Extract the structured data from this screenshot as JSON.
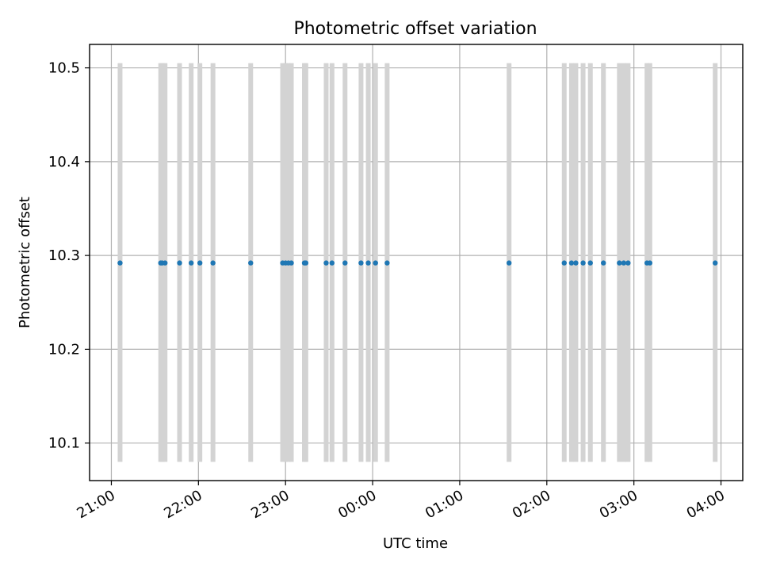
{
  "chart_data": {
    "type": "scatter",
    "title": "Photometric offset variation",
    "xlabel": "UTC time",
    "ylabel": "Photometric offset",
    "x_unit": "hours (UTC clock time, wrapping past midnight)",
    "xlim": [
      "20:45",
      "04:15"
    ],
    "ylim": [
      10.06,
      10.525
    ],
    "x_ticks": [
      "21:00",
      "22:00",
      "23:00",
      "00:00",
      "01:00",
      "02:00",
      "03:00",
      "04:00"
    ],
    "y_ticks": [
      10.1,
      10.2,
      10.3,
      10.4,
      10.5
    ],
    "y_tick_labels": [
      "10.1",
      "10.2",
      "10.3",
      "10.4",
      "10.5"
    ],
    "grid": true,
    "point_color": "#1f77b4",
    "band_color": "#d3d3d3",
    "band_range": [
      10.08,
      10.505
    ],
    "points_x": [
      "21:06",
      "21:34",
      "21:35",
      "21:37",
      "21:47",
      "21:55",
      "22:01",
      "22:10",
      "22:36",
      "22:58",
      "23:00",
      "23:02",
      "23:04",
      "23:13",
      "23:14",
      "23:28",
      "23:32",
      "23:41",
      "23:52",
      "23:57",
      "00:02",
      "00:10",
      "01:34",
      "02:12",
      "02:17",
      "02:20",
      "02:25",
      "02:30",
      "02:39",
      "02:50",
      "02:53",
      "02:56",
      "03:09",
      "03:11",
      "03:56"
    ],
    "points_y": [
      10.292,
      10.292,
      10.292,
      10.292,
      10.292,
      10.292,
      10.292,
      10.292,
      10.292,
      10.292,
      10.292,
      10.292,
      10.292,
      10.292,
      10.292,
      10.292,
      10.292,
      10.292,
      10.292,
      10.292,
      10.292,
      10.292,
      10.292,
      10.292,
      10.292,
      10.292,
      10.292,
      10.292,
      10.292,
      10.292,
      10.292,
      10.292,
      10.292,
      10.292,
      10.292
    ]
  }
}
